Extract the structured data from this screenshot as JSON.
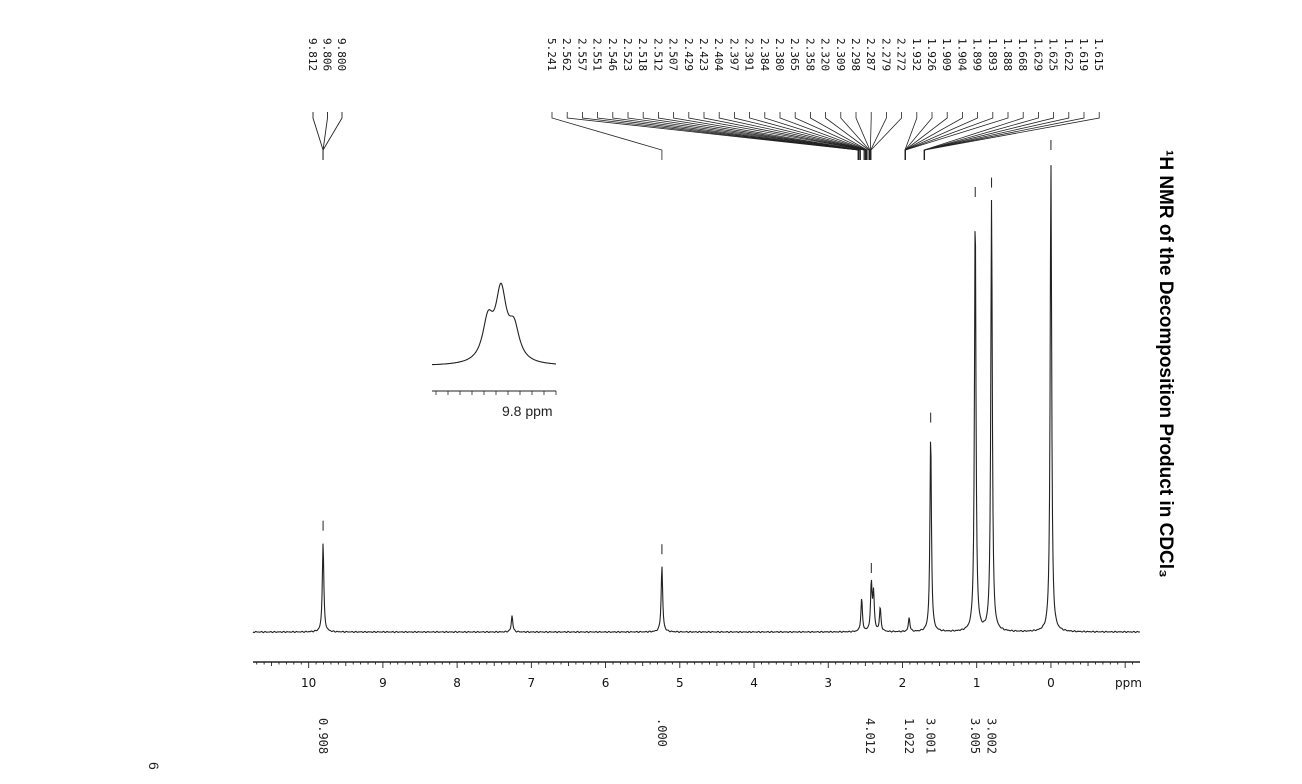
{
  "chart_data": {
    "type": "line",
    "title": "¹H NMR of the Decomposition Product in CDCl₃",
    "xlabel": "ppm",
    "xlim": [
      10.75,
      -1.2
    ],
    "x_reversed": true,
    "tick_labels": [
      "10",
      "9",
      "8",
      "7",
      "6",
      "5",
      "4",
      "3",
      "2",
      "1",
      "0"
    ],
    "page_number": "6",
    "series": [
      {
        "peaks": [
          {
            "ppm": 9.806,
            "height": 0.19
          },
          {
            "ppm": 7.26,
            "height": 0.035
          },
          {
            "ppm": 5.241,
            "height": 0.14
          },
          {
            "ppm": 2.55,
            "height": 0.07
          },
          {
            "ppm": 2.42,
            "height": 0.1
          },
          {
            "ppm": 2.39,
            "height": 0.08
          },
          {
            "ppm": 2.3,
            "height": 0.05
          },
          {
            "ppm": 1.91,
            "height": 0.03
          },
          {
            "ppm": 1.62,
            "height": 0.42
          },
          {
            "ppm": 1.02,
            "height": 0.9
          },
          {
            "ppm": 0.8,
            "height": 0.92
          },
          {
            "ppm": 0.0,
            "height": 1.0
          }
        ]
      }
    ],
    "peak_labels": {
      "group1": [
        "9.812",
        "9.806",
        "9.800"
      ],
      "group2": [
        "5.241",
        "2.562",
        "2.557",
        "2.551",
        "2.546",
        "2.523",
        "2.518",
        "2.512",
        "2.507",
        "2.429",
        "2.423",
        "2.404",
        "2.397",
        "2.391",
        "2.384",
        "2.380",
        "2.365",
        "2.358",
        "2.320",
        "2.309",
        "2.298",
        "2.287",
        "2.279",
        "2.272",
        "1.932",
        "1.926",
        "1.909",
        "1.904",
        "1.899",
        "1.893",
        "1.888",
        "1.668",
        "1.629",
        "1.625",
        "1.622",
        "1.619",
        "1.615"
      ]
    },
    "integrals": [
      {
        "ppm": 9.81,
        "label": "0.908"
      },
      {
        "ppm": 5.24,
        "label": ".000"
      },
      {
        "ppm": 2.4,
        "label": "4.012"
      },
      {
        "ppm": 1.91,
        "label": "1.022"
      },
      {
        "ppm": 1.62,
        "label": "3.001"
      },
      {
        "ppm": 1.02,
        "label": "3.005"
      },
      {
        "ppm": 0.8,
        "label": "3.002"
      }
    ],
    "inset": {
      "label": "9.8 ppm",
      "peaks": [
        0.55,
        0.95,
        0.45
      ]
    }
  }
}
